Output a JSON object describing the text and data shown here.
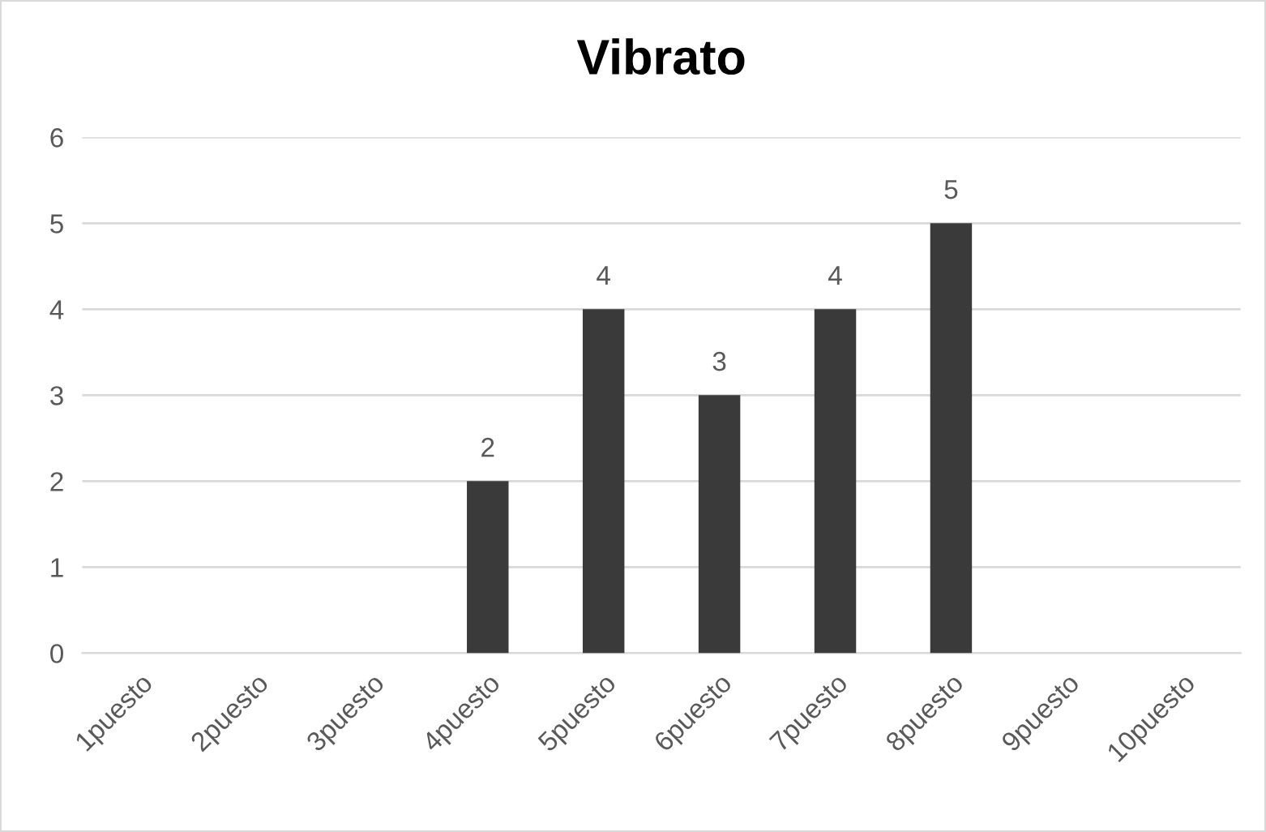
{
  "chart_data": {
    "type": "bar",
    "title": "Vibrato",
    "categories": [
      "1puesto",
      "2puesto",
      "3puesto",
      "4puesto",
      "5puesto",
      "6puesto",
      "7puesto",
      "8puesto",
      "9puesto",
      "10puesto"
    ],
    "values": [
      null,
      null,
      null,
      2,
      4,
      3,
      4,
      5,
      null,
      null
    ],
    "color": "#3a3a3a",
    "ylim": [
      0,
      6
    ],
    "yticks": [
      0,
      1,
      2,
      3,
      4,
      5,
      6
    ],
    "grid": "y",
    "data_labels": true
  }
}
